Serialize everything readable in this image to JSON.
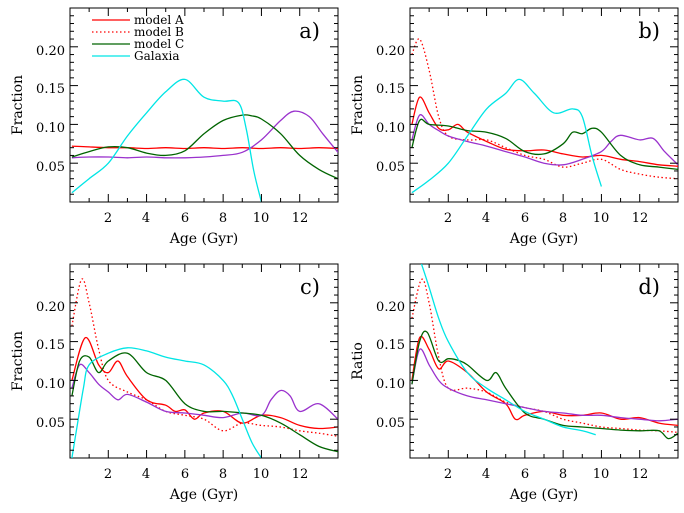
{
  "chart_data": [
    {
      "type": "line",
      "panel_label": "a)",
      "xlabel": "Age (Gyr)",
      "ylabel": "Fraction",
      "xlim": [
        0,
        14
      ],
      "ylim": [
        0,
        0.25
      ],
      "x_ticks": [
        2,
        4,
        6,
        8,
        10,
        12
      ],
      "y_ticks": [
        0.05,
        0.1,
        0.15,
        0.2
      ],
      "y_tick_labels": [
        "0.05",
        "0.10",
        "0.15",
        "0.20"
      ],
      "legend": {
        "position": "top-left",
        "entries": [
          {
            "label": "model A",
            "color": "#ff0000"
          },
          {
            "label": "model B",
            "color": "#ff0000"
          },
          {
            "label": "model C",
            "color": "#006400"
          },
          {
            "label": "Galaxia",
            "color": "#00e5e5"
          }
        ]
      },
      "series": [
        {
          "name": "model A",
          "color": "#ff0000",
          "style": "solid",
          "x": [
            0.1,
            1,
            2,
            3,
            4,
            5,
            6,
            7,
            8,
            9,
            10,
            11,
            12,
            13,
            14
          ],
          "y": [
            0.072,
            0.071,
            0.07,
            0.07,
            0.069,
            0.07,
            0.069,
            0.07,
            0.069,
            0.07,
            0.069,
            0.07,
            0.069,
            0.07,
            0.069
          ]
        },
        {
          "name": "",
          "color": "#9a32cd",
          "style": "solid",
          "x": [
            0.1,
            1,
            2,
            3,
            4,
            5,
            6,
            7,
            8,
            9,
            10,
            11,
            11.7,
            12.5,
            13.2,
            14
          ],
          "y": [
            0.057,
            0.058,
            0.058,
            0.057,
            0.058,
            0.057,
            0.057,
            0.058,
            0.06,
            0.064,
            0.08,
            0.105,
            0.117,
            0.11,
            0.088,
            0.064
          ]
        },
        {
          "name": "model C",
          "color": "#006400",
          "style": "solid",
          "x": [
            0.1,
            1,
            2,
            3,
            4,
            5,
            6,
            7,
            8,
            9,
            9.5,
            10,
            11,
            12,
            13,
            14
          ],
          "y": [
            0.058,
            0.065,
            0.071,
            0.07,
            0.063,
            0.06,
            0.066,
            0.088,
            0.105,
            0.112,
            0.111,
            0.107,
            0.088,
            0.06,
            0.042,
            0.03
          ]
        },
        {
          "name": "Galaxia",
          "color": "#00e5e5",
          "style": "solid",
          "x": [
            0.1,
            1,
            2,
            3,
            4,
            5,
            6,
            7,
            8,
            8.8,
            9.2,
            9.6,
            10
          ],
          "y": [
            0.012,
            0.03,
            0.05,
            0.085,
            0.115,
            0.142,
            0.158,
            0.135,
            0.13,
            0.128,
            0.095,
            0.04,
            0.0
          ]
        }
      ]
    },
    {
      "type": "line",
      "panel_label": "b)",
      "xlabel": "Age (Gyr)",
      "ylabel": "Fraction",
      "xlim": [
        0,
        14
      ],
      "ylim": [
        0,
        0.25
      ],
      "x_ticks": [
        2,
        4,
        6,
        8,
        10,
        12
      ],
      "y_ticks": [
        0.05,
        0.1,
        0.15,
        0.2
      ],
      "y_tick_labels": [
        "0.05",
        "0.10",
        "0.15",
        "0.20"
      ],
      "series": [
        {
          "name": "model A",
          "color": "#ff0000",
          "style": "solid",
          "x": [
            0.1,
            0.5,
            1,
            1.5,
            2,
            2.5,
            3,
            4,
            5,
            6,
            7,
            8,
            9,
            10,
            11,
            12,
            13,
            14
          ],
          "y": [
            0.1,
            0.135,
            0.115,
            0.095,
            0.093,
            0.1,
            0.09,
            0.078,
            0.068,
            0.066,
            0.067,
            0.062,
            0.058,
            0.06,
            0.055,
            0.052,
            0.048,
            0.046
          ]
        },
        {
          "name": "model B",
          "color": "#ff0000",
          "style": "dotted",
          "x": [
            0.1,
            0.5,
            1,
            1.5,
            2,
            3,
            4,
            5,
            6,
            7,
            8,
            9,
            10,
            11,
            12,
            13,
            14
          ],
          "y": [
            0.19,
            0.21,
            0.17,
            0.11,
            0.085,
            0.08,
            0.08,
            0.07,
            0.06,
            0.055,
            0.045,
            0.05,
            0.055,
            0.042,
            0.036,
            0.032,
            0.03
          ]
        },
        {
          "name": "",
          "color": "#9a32cd",
          "style": "solid",
          "x": [
            0.1,
            0.5,
            1,
            1.5,
            2,
            3,
            4,
            5,
            6,
            7,
            8,
            9,
            10,
            10.5,
            11,
            12,
            12.7,
            13.3,
            14
          ],
          "y": [
            0.08,
            0.112,
            0.1,
            0.092,
            0.085,
            0.078,
            0.072,
            0.065,
            0.058,
            0.05,
            0.048,
            0.055,
            0.065,
            0.078,
            0.086,
            0.08,
            0.082,
            0.065,
            0.048
          ]
        },
        {
          "name": "model C",
          "color": "#006400",
          "style": "solid",
          "x": [
            0.1,
            0.5,
            1,
            2,
            3,
            4,
            5,
            6,
            7,
            8,
            8.5,
            9,
            9.5,
            10,
            11,
            12,
            13,
            14
          ],
          "y": [
            0.07,
            0.105,
            0.1,
            0.098,
            0.092,
            0.09,
            0.082,
            0.065,
            0.062,
            0.075,
            0.09,
            0.088,
            0.095,
            0.09,
            0.06,
            0.048,
            0.045,
            0.042
          ]
        },
        {
          "name": "Galaxia",
          "color": "#00e5e5",
          "style": "solid",
          "x": [
            0.1,
            1,
            2,
            3,
            4,
            5,
            5.7,
            6.5,
            7.5,
            8.5,
            9,
            9.5,
            10
          ],
          "y": [
            0.012,
            0.028,
            0.05,
            0.085,
            0.12,
            0.14,
            0.158,
            0.14,
            0.115,
            0.12,
            0.11,
            0.06,
            0.02
          ]
        }
      ]
    },
    {
      "type": "line",
      "panel_label": "c)",
      "xlabel": "Age (Gyr)",
      "ylabel": "Fraction",
      "xlim": [
        0,
        14
      ],
      "ylim": [
        0,
        0.25
      ],
      "x_ticks": [
        2,
        4,
        6,
        8,
        10,
        12
      ],
      "y_ticks": [
        0.05,
        0.1,
        0.15,
        0.2
      ],
      "y_tick_labels": [
        "0.05",
        "0.10",
        "0.15",
        "0.20"
      ],
      "series": [
        {
          "name": "model A",
          "color": "#ff0000",
          "style": "solid",
          "x": [
            0.1,
            0.8,
            1.5,
            2,
            2.5,
            3,
            4,
            5,
            5.5,
            6,
            6.5,
            7,
            8,
            9,
            10,
            11,
            12,
            13,
            14
          ],
          "y": [
            0.1,
            0.155,
            0.12,
            0.11,
            0.125,
            0.105,
            0.075,
            0.068,
            0.06,
            0.062,
            0.05,
            0.058,
            0.06,
            0.045,
            0.055,
            0.052,
            0.042,
            0.038,
            0.04
          ]
        },
        {
          "name": "model B",
          "color": "#ff0000",
          "style": "dotted",
          "x": [
            0.1,
            0.6,
            1,
            1.5,
            2,
            3,
            4,
            5,
            6,
            7,
            8,
            9,
            10,
            11,
            12,
            13,
            14
          ],
          "y": [
            0.17,
            0.23,
            0.2,
            0.14,
            0.1,
            0.085,
            0.075,
            0.06,
            0.055,
            0.05,
            0.035,
            0.045,
            0.042,
            0.04,
            0.035,
            0.032,
            0.028
          ]
        },
        {
          "name": "",
          "color": "#9a32cd",
          "style": "solid",
          "x": [
            0.1,
            0.5,
            1,
            1.5,
            2,
            2.5,
            3,
            4,
            5,
            6,
            7,
            8,
            9,
            10,
            10.5,
            11,
            11.5,
            12,
            13,
            14
          ],
          "y": [
            0.09,
            0.12,
            0.11,
            0.095,
            0.085,
            0.075,
            0.082,
            0.072,
            0.06,
            0.058,
            0.055,
            0.052,
            0.058,
            0.055,
            0.075,
            0.087,
            0.08,
            0.06,
            0.07,
            0.05
          ]
        },
        {
          "name": "model C",
          "color": "#006400",
          "style": "solid",
          "x": [
            0.1,
            0.5,
            1,
            1.5,
            2,
            3,
            4,
            5,
            6,
            7,
            8,
            9,
            10,
            11,
            12,
            13,
            14
          ],
          "y": [
            0.08,
            0.125,
            0.13,
            0.11,
            0.125,
            0.135,
            0.11,
            0.1,
            0.07,
            0.06,
            0.06,
            0.058,
            0.055,
            0.045,
            0.03,
            0.015,
            0.008
          ]
        },
        {
          "name": "Galaxia",
          "color": "#00e5e5",
          "style": "solid",
          "x": [
            0.1,
            0.3,
            0.7,
            1,
            2,
            3,
            4,
            5,
            6,
            7,
            8,
            8.5,
            9,
            9.5,
            10
          ],
          "y": [
            0.0,
            0.03,
            0.09,
            0.12,
            0.135,
            0.142,
            0.138,
            0.13,
            0.125,
            0.12,
            0.1,
            0.08,
            0.05,
            0.02,
            0.0
          ]
        }
      ]
    },
    {
      "type": "line",
      "panel_label": "d)",
      "xlabel": "Age (Gyr)",
      "ylabel": "Ratio",
      "xlim": [
        0,
        14
      ],
      "ylim": [
        0,
        0.25
      ],
      "x_ticks": [
        2,
        4,
        6,
        8,
        10,
        12
      ],
      "y_ticks": [
        0.05,
        0.1,
        0.15,
        0.2
      ],
      "y_tick_labels": [
        "0.05",
        "0.10",
        "0.15",
        "0.20"
      ],
      "series": [
        {
          "name": "model A",
          "color": "#ff0000",
          "style": "solid",
          "x": [
            0.1,
            0.5,
            1,
            1.5,
            2,
            3,
            4,
            5,
            5.5,
            6,
            7,
            8,
            9,
            10,
            11,
            12,
            13,
            14
          ],
          "y": [
            0.1,
            0.155,
            0.14,
            0.115,
            0.125,
            0.11,
            0.085,
            0.07,
            0.05,
            0.055,
            0.06,
            0.055,
            0.055,
            0.058,
            0.05,
            0.052,
            0.045,
            0.042
          ]
        },
        {
          "name": "model B",
          "color": "#ff0000",
          "style": "dotted",
          "x": [
            0.1,
            0.6,
            1,
            1.5,
            2,
            3,
            4,
            5,
            6,
            7,
            8,
            9,
            10,
            11,
            12,
            13,
            14
          ],
          "y": [
            0.18,
            0.23,
            0.2,
            0.13,
            0.09,
            0.09,
            0.085,
            0.072,
            0.065,
            0.06,
            0.05,
            0.045,
            0.04,
            0.038,
            0.036,
            0.035,
            0.033
          ]
        },
        {
          "name": "",
          "color": "#9a32cd",
          "style": "solid",
          "x": [
            0.1,
            0.5,
            1,
            1.5,
            2,
            3,
            4,
            5,
            6,
            7,
            8,
            9,
            10,
            11,
            12,
            13,
            14
          ],
          "y": [
            0.095,
            0.14,
            0.12,
            0.1,
            0.09,
            0.08,
            0.075,
            0.07,
            0.065,
            0.06,
            0.058,
            0.055,
            0.055,
            0.052,
            0.05,
            0.048,
            0.05
          ]
        },
        {
          "name": "model C",
          "color": "#006400",
          "style": "solid",
          "x": [
            0.1,
            0.5,
            0.9,
            1.5,
            2,
            2.5,
            3,
            4,
            4.5,
            5,
            6,
            7,
            8,
            9,
            10,
            11,
            12,
            13,
            13.5,
            14
          ],
          "y": [
            0.095,
            0.15,
            0.162,
            0.125,
            0.128,
            0.126,
            0.12,
            0.1,
            0.11,
            0.09,
            0.058,
            0.05,
            0.042,
            0.04,
            0.038,
            0.036,
            0.035,
            0.035,
            0.025,
            0.032
          ]
        },
        {
          "name": "Galaxia",
          "color": "#00e5e5",
          "style": "solid",
          "x": [
            0.6,
            1,
            1.5,
            2,
            3,
            4,
            5,
            6,
            7,
            8,
            9,
            9.7
          ],
          "y": [
            0.25,
            0.22,
            0.18,
            0.15,
            0.11,
            0.09,
            0.075,
            0.06,
            0.05,
            0.04,
            0.035,
            0.03
          ]
        }
      ]
    }
  ]
}
